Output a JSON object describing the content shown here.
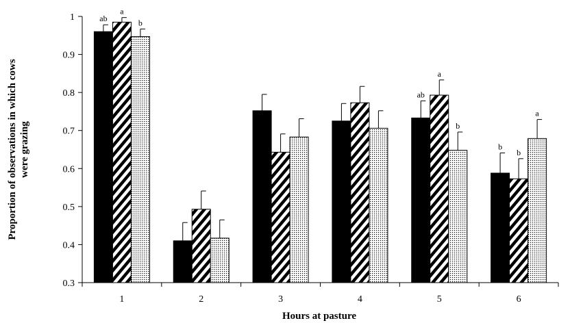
{
  "chart_data": {
    "type": "bar",
    "title": "",
    "xlabel": "Hours at pasture",
    "ylabel_lines": [
      "Proportion of observations in which cows",
      "were grazing"
    ],
    "ylim": [
      0.3,
      1.0
    ],
    "yticks": [
      "0.3",
      "0.4",
      "0.5",
      "0.6",
      "0.7",
      "0.8",
      "0.9",
      "1"
    ],
    "categories": [
      "1",
      "2",
      "3",
      "4",
      "5",
      "6"
    ],
    "grid": false,
    "legend": "none",
    "series": [
      {
        "pattern": "solid-black",
        "values": [
          0.96,
          0.41,
          0.752,
          0.725,
          0.733,
          0.588
        ],
        "errors": [
          0.018,
          0.048,
          0.043,
          0.046,
          0.045,
          0.053
        ],
        "sig_labels": [
          "ab",
          "",
          "",
          "",
          "ab",
          "b"
        ]
      },
      {
        "pattern": "diagonal-stripes",
        "values": [
          0.985,
          0.493,
          0.643,
          0.773,
          0.793,
          0.573
        ],
        "errors": [
          0.012,
          0.048,
          0.048,
          0.043,
          0.04,
          0.053
        ],
        "sig_labels": [
          "a",
          "",
          "",
          "",
          "a",
          "b"
        ]
      },
      {
        "pattern": "dotted",
        "values": [
          0.947,
          0.417,
          0.683,
          0.706,
          0.648,
          0.679
        ],
        "errors": [
          0.02,
          0.048,
          0.048,
          0.046,
          0.048,
          0.05
        ],
        "sig_labels": [
          "b",
          "",
          "",
          "",
          "b",
          "a"
        ]
      }
    ]
  }
}
